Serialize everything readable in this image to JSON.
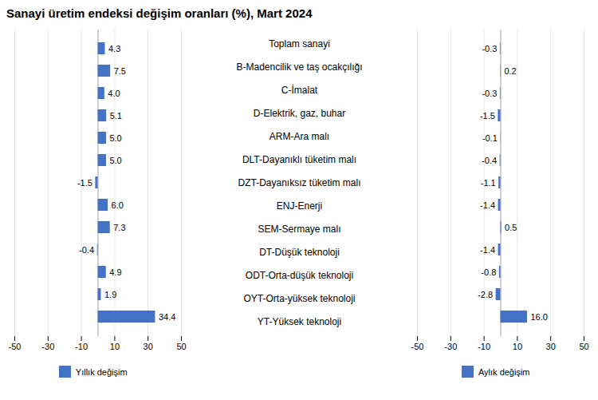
{
  "chart_data": {
    "type": "bar",
    "title": "Sanayi üretim endeksi değişim oranları (%), Mart 2024",
    "orientation": "horizontal",
    "categories": [
      "Toplam sanayi",
      "B-Madencilik ve taş ocakçılığı",
      "C-İmalat",
      "D-Elektrik, gaz, buhar",
      "ARM-Ara malı",
      "DLT-Dayanıklı tüketim malı",
      "DZT-Dayanıksız tüketim malı",
      "ENJ-Enerji",
      "SEM-Sermaye malı",
      "DT-Düşük teknoloji",
      "ODT-Orta-düşük teknoloji",
      "OYT-Orta-yüksek teknoloji",
      "YT-Yüksek teknoloji"
    ],
    "series": [
      {
        "name": "Yıllık değişim",
        "color": "#4472c4",
        "values": [
          4.3,
          7.5,
          4.0,
          5.1,
          5.0,
          5.0,
          -1.5,
          6.0,
          7.3,
          -0.4,
          4.9,
          1.9,
          34.4
        ],
        "value_labels": [
          "4.3",
          "7.5",
          "4.0",
          "5.1",
          "5.0",
          "5.0",
          "-1.5",
          "6.0",
          "7.3",
          "-0.4",
          "4.9",
          "1.9",
          "34.4"
        ]
      },
      {
        "name": "Aylık değişim",
        "color": "#4472c4",
        "values": [
          -0.3,
          0.2,
          -0.3,
          -1.5,
          -0.1,
          -0.4,
          -1.1,
          -1.4,
          0.5,
          -1.4,
          -0.8,
          -2.8,
          16.0
        ],
        "value_labels": [
          "-0.3",
          "0.2",
          "-0.3",
          "-1.5",
          "-0.1",
          "-0.4",
          "-1.1",
          "-1.4",
          "0.5",
          "-1.4",
          "-0.8",
          "-2.8",
          "16.0"
        ]
      }
    ],
    "xlim": [
      -50,
      50
    ],
    "xticks": [
      -50,
      -30,
      -10,
      10,
      30,
      50
    ],
    "grid": true,
    "legend": "bottom",
    "data_labels": true
  }
}
